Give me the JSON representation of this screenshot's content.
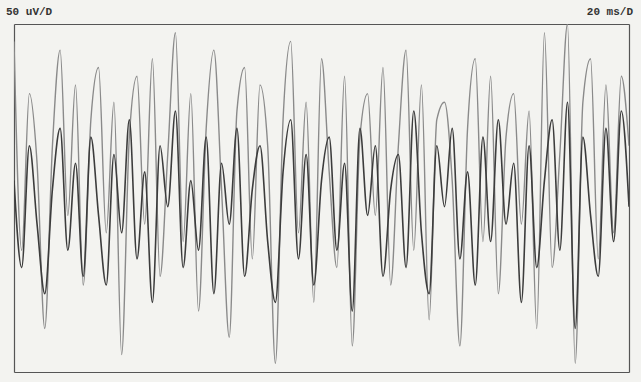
{
  "chart_data": {
    "type": "line",
    "ylabel": "50 uV/D",
    "xlabel": "20 ms/D",
    "tick_labels": false,
    "xlim": [
      0,
      200
    ],
    "xticks": [],
    "ylim": [
      -200,
      200
    ],
    "yticks": [],
    "x": [
      0,
      2.5,
      5,
      7.5,
      10,
      12.5,
      15,
      17.5,
      20,
      22.5,
      25,
      27.5,
      30,
      32.5,
      35,
      37.5,
      40,
      42.5,
      45,
      47.5,
      50,
      52.5,
      55,
      57.5,
      60,
      62.5,
      65,
      67.5,
      70,
      72.5,
      75,
      77.5,
      80,
      82.5,
      85,
      87.5,
      90,
      92.5,
      95,
      97.5,
      100,
      102.5,
      105,
      107.5,
      110,
      112.5,
      115,
      117.5,
      120,
      122.5,
      125,
      127.5,
      130,
      132.5,
      135,
      137.5,
      140,
      142.5,
      145,
      147.5,
      150,
      152.5,
      155,
      157.5,
      160,
      162.5,
      165,
      167.5,
      170,
      172.5,
      175,
      177.5,
      180,
      182.5,
      185,
      187.5,
      190,
      192.5,
      195,
      197.5,
      200
    ],
    "series": [
      {
        "color": "#8a8a8a",
        "values": [
          180,
          -60,
          120,
          40,
          -150,
          60,
          170,
          -20,
          130,
          -100,
          90,
          150,
          -40,
          110,
          -180,
          70,
          140,
          -30,
          160,
          -90,
          50,
          190,
          -50,
          120,
          -130,
          80,
          170,
          10,
          -160,
          100,
          150,
          -70,
          130,
          60,
          -190,
          90,
          180,
          -40,
          110,
          -120,
          160,
          30,
          -80,
          140,
          -170,
          70,
          120,
          -20,
          150,
          -100,
          60,
          170,
          -60,
          130,
          -140,
          90,
          110,
          20,
          -170,
          80,
          160,
          -50,
          140,
          -110,
          70,
          120,
          -30,
          100,
          -150,
          190,
          -80,
          50,
          200,
          -190,
          110,
          160,
          -70,
          130,
          -40,
          140,
          60
        ]
      },
      {
        "color": "#3c3c3c",
        "values": [
          20,
          -80,
          60,
          -30,
          -110,
          10,
          80,
          -60,
          40,
          -90,
          70,
          -20,
          -100,
          50,
          -40,
          90,
          -70,
          30,
          -120,
          60,
          -10,
          100,
          -80,
          20,
          -60,
          70,
          -110,
          40,
          -30,
          80,
          -90,
          10,
          60,
          -50,
          -120,
          30,
          90,
          -70,
          50,
          -100,
          20,
          70,
          -60,
          40,
          -130,
          80,
          -20,
          60,
          -90,
          10,
          50,
          -80,
          100,
          -40,
          -110,
          60,
          -10,
          80,
          -70,
          30,
          -100,
          70,
          -50,
          90,
          -30,
          40,
          -120,
          60,
          -80,
          20,
          90,
          -60,
          110,
          -150,
          70,
          -20,
          -90,
          80,
          -50,
          100,
          -10
        ]
      }
    ]
  }
}
